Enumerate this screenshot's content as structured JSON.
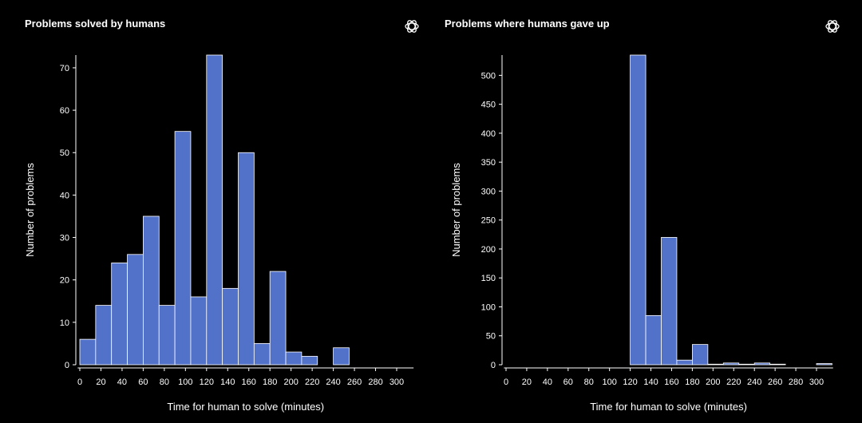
{
  "chart_data": [
    {
      "type": "bar",
      "title": "Problems solved by humans",
      "xlabel": "Time for human to solve (minutes)",
      "ylabel": "Number of problems",
      "bin_width": 15,
      "bin_starts": [
        0,
        15,
        30,
        45,
        60,
        75,
        90,
        105,
        120,
        135,
        150,
        165,
        180,
        195,
        210,
        225,
        240,
        255,
        270,
        285,
        300
      ],
      "values": [
        6,
        14,
        24,
        26,
        35,
        14,
        55,
        16,
        73,
        18,
        50,
        5,
        22,
        3,
        2,
        0,
        4,
        0,
        0,
        0,
        0
      ],
      "xlim": [
        -2,
        316
      ],
      "ylim": [
        0,
        73
      ],
      "xticks": [
        0,
        20,
        40,
        60,
        80,
        100,
        120,
        140,
        160,
        180,
        200,
        220,
        240,
        260,
        280,
        300
      ],
      "yticks": [
        0,
        10,
        20,
        30,
        40,
        50,
        60,
        70
      ],
      "grid": false
    },
    {
      "type": "bar",
      "title": "Problems where humans gave up",
      "xlabel": "Time for human to solve (minutes)",
      "ylabel": "Number of problems",
      "bin_width": 15,
      "bin_starts": [
        0,
        15,
        30,
        45,
        60,
        75,
        90,
        105,
        120,
        135,
        150,
        165,
        180,
        195,
        210,
        225,
        240,
        255,
        270,
        285,
        300
      ],
      "values": [
        0,
        0,
        0,
        0,
        0,
        0,
        0,
        0,
        535,
        85,
        220,
        8,
        35,
        1,
        3,
        1,
        3,
        1,
        0,
        0,
        2
      ],
      "xlim": [
        -2,
        316
      ],
      "ylim": [
        0,
        535
      ],
      "xticks": [
        0,
        20,
        40,
        60,
        80,
        100,
        120,
        140,
        160,
        180,
        200,
        220,
        240,
        260,
        280,
        300
      ],
      "yticks": [
        0,
        50,
        100,
        150,
        200,
        250,
        300,
        350,
        400,
        450,
        500
      ],
      "grid": false
    }
  ],
  "icons": {
    "logo": "openai-logo-icon"
  }
}
